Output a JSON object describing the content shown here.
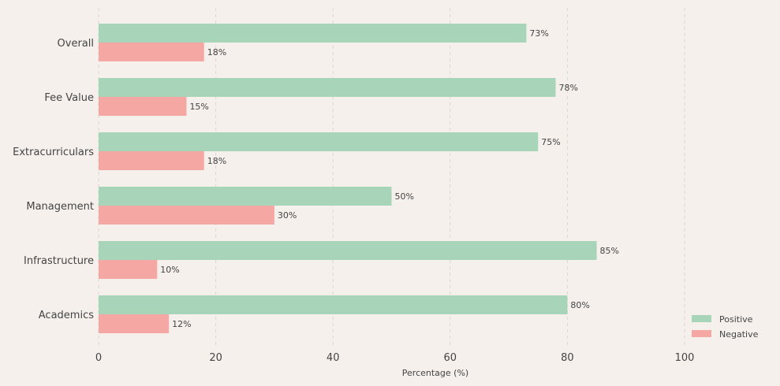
{
  "chart_data": {
    "type": "bar",
    "orientation": "horizontal",
    "categories": [
      "Overall",
      "Fee Value",
      "Extracurriculars",
      "Management",
      "Infrastructure",
      "Academics"
    ],
    "series": [
      {
        "name": "Positive",
        "values": [
          73,
          78,
          75,
          50,
          85,
          80
        ],
        "color": "#a8d5ba",
        "labels": [
          "73%",
          "78%",
          "75%",
          "50%",
          "85%",
          "80%"
        ]
      },
      {
        "name": "Negative",
        "values": [
          18,
          15,
          18,
          30,
          10,
          12
        ],
        "color": "#f5a8a3",
        "labels": [
          "18%",
          "15%",
          "18%",
          "30%",
          "10%",
          "12%"
        ]
      }
    ],
    "xlabel": "Percentage (%)",
    "xlim": [
      0,
      115
    ],
    "xticks": [
      0,
      20,
      40,
      60,
      80,
      100
    ],
    "grid": "vertical dashed",
    "legend_position": "bottom-right"
  }
}
